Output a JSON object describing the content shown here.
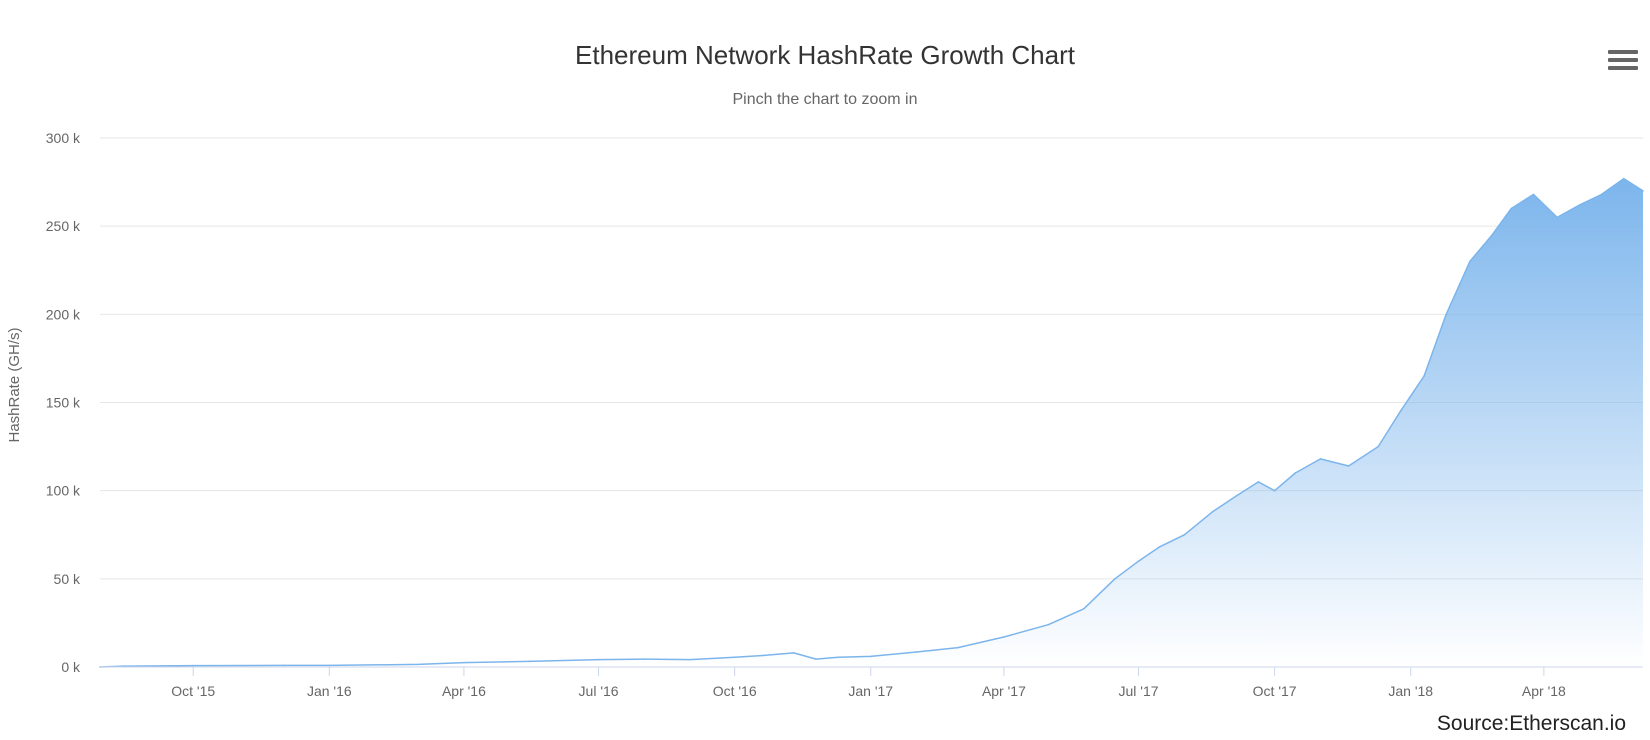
{
  "chart_data": {
    "type": "area",
    "title": "Ethereum Network HashRate Growth Chart",
    "subtitle": "Pinch the chart to zoom in",
    "xlabel": "",
    "ylabel": "HashRate (GH/s)",
    "ylim": [
      0,
      300000
    ],
    "yticks": [
      {
        "value": 0,
        "label": "0 k"
      },
      {
        "value": 50000,
        "label": "50 k"
      },
      {
        "value": 100000,
        "label": "100 k"
      },
      {
        "value": 150000,
        "label": "150 k"
      },
      {
        "value": 200000,
        "label": "200 k"
      },
      {
        "value": 250000,
        "label": "250 k"
      },
      {
        "value": 300000,
        "label": "300 k"
      }
    ],
    "xticks": [
      {
        "date": "2015-10-01",
        "label": "Oct '15"
      },
      {
        "date": "2016-01-01",
        "label": "Jan '16"
      },
      {
        "date": "2016-04-01",
        "label": "Apr '16"
      },
      {
        "date": "2016-07-01",
        "label": "Jul '16"
      },
      {
        "date": "2016-10-01",
        "label": "Oct '16"
      },
      {
        "date": "2017-01-01",
        "label": "Jan '17"
      },
      {
        "date": "2017-04-01",
        "label": "Apr '17"
      },
      {
        "date": "2017-07-01",
        "label": "Jul '17"
      },
      {
        "date": "2017-10-01",
        "label": "Oct '17"
      },
      {
        "date": "2018-01-01",
        "label": "Jan '18"
      },
      {
        "date": "2018-04-01",
        "label": "Apr '18"
      }
    ],
    "xrange": [
      "2015-07-30",
      "2018-06-07"
    ],
    "grid": true,
    "legend": "none",
    "series": [
      {
        "color": "#7cb5ec",
        "points": [
          [
            "2015-07-30",
            0
          ],
          [
            "2015-08-15",
            500
          ],
          [
            "2015-10-01",
            800
          ],
          [
            "2015-12-01",
            900
          ],
          [
            "2016-01-01",
            900
          ],
          [
            "2016-03-01",
            1500
          ],
          [
            "2016-04-01",
            2500
          ],
          [
            "2016-05-15",
            3200
          ],
          [
            "2016-07-01",
            4200
          ],
          [
            "2016-08-01",
            4500
          ],
          [
            "2016-09-01",
            4200
          ],
          [
            "2016-10-01",
            5500
          ],
          [
            "2016-10-20",
            6500
          ],
          [
            "2016-11-10",
            8000
          ],
          [
            "2016-11-25",
            4500
          ],
          [
            "2016-12-10",
            5500
          ],
          [
            "2017-01-01",
            6000
          ],
          [
            "2017-02-01",
            8500
          ],
          [
            "2017-03-01",
            11000
          ],
          [
            "2017-04-01",
            17000
          ],
          [
            "2017-05-01",
            24000
          ],
          [
            "2017-05-25",
            33000
          ],
          [
            "2017-06-15",
            50000
          ],
          [
            "2017-07-01",
            60000
          ],
          [
            "2017-07-15",
            68000
          ],
          [
            "2017-08-01",
            75000
          ],
          [
            "2017-08-20",
            88000
          ],
          [
            "2017-09-05",
            97000
          ],
          [
            "2017-09-20",
            105000
          ],
          [
            "2017-10-01",
            100000
          ],
          [
            "2017-10-15",
            110000
          ],
          [
            "2017-11-01",
            118000
          ],
          [
            "2017-11-20",
            114000
          ],
          [
            "2017-12-10",
            125000
          ],
          [
            "2017-12-25",
            145000
          ],
          [
            "2018-01-10",
            165000
          ],
          [
            "2018-01-25",
            200000
          ],
          [
            "2018-02-10",
            230000
          ],
          [
            "2018-02-25",
            245000
          ],
          [
            "2018-03-10",
            260000
          ],
          [
            "2018-03-25",
            268000
          ],
          [
            "2018-04-10",
            255000
          ],
          [
            "2018-04-25",
            262000
          ],
          [
            "2018-05-10",
            268000
          ],
          [
            "2018-05-25",
            277000
          ],
          [
            "2018-06-07",
            270000
          ]
        ]
      }
    ]
  },
  "toolbar": {
    "menu_icon": "hamburger-menu-icon"
  },
  "credits": {
    "source": "Source:Etherscan.io"
  }
}
